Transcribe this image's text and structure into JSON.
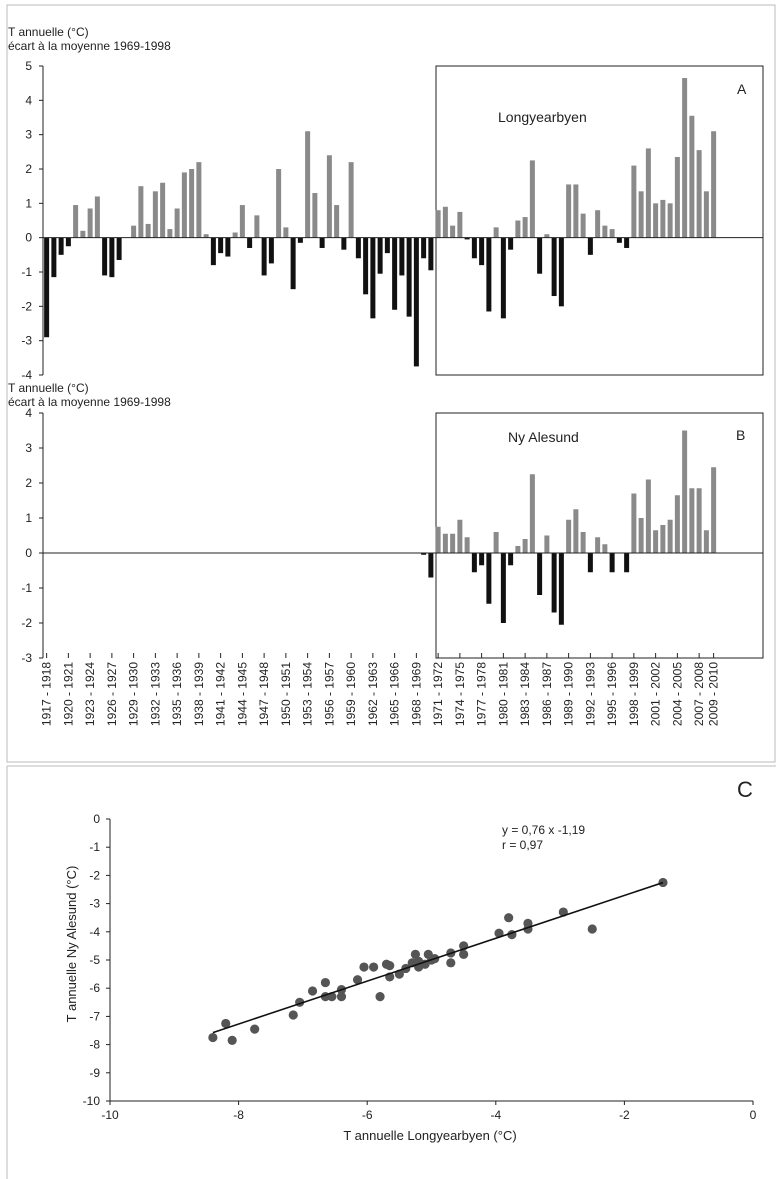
{
  "chart_data": [
    {
      "type": "bar",
      "panel": "A",
      "station": "Longyearbyen",
      "ylabel_line1": "T annuelle (°C)",
      "ylabel_line2": "écart à la moyenne 1969-1998",
      "ylim": [
        -4,
        5
      ],
      "yticks": [
        "5",
        "4",
        "3",
        "2",
        "1",
        "0",
        "-1",
        "-2",
        "-3",
        "-4"
      ],
      "ytick_values": [
        5,
        4,
        3,
        2,
        1,
        0,
        -1,
        -2,
        -3,
        -4
      ],
      "x_start_year": 1917,
      "highlight_from_year": 1969,
      "values": [
        -2.9,
        -1.15,
        -0.5,
        -0.25,
        0.95,
        0.2,
        0.85,
        1.2,
        -1.1,
        -1.15,
        -0.65,
        0.0,
        0.35,
        1.5,
        0.4,
        1.35,
        1.6,
        0.25,
        0.85,
        1.9,
        2.0,
        2.2,
        0.1,
        -0.8,
        -0.45,
        -0.55,
        0.15,
        0.95,
        -0.3,
        0.65,
        -1.1,
        -0.75,
        2.0,
        0.3,
        -1.5,
        -0.15,
        3.1,
        1.3,
        -0.3,
        2.4,
        0.95,
        -0.35,
        2.2,
        -0.6,
        -1.65,
        -2.35,
        -1.05,
        -0.45,
        -2.1,
        -1.1,
        -2.3,
        -3.75,
        -0.6,
        -0.95,
        0.8,
        0.9,
        0.35,
        0.75,
        -0.05,
        -0.6,
        -0.8,
        -2.15,
        0.3,
        -2.35,
        -0.35,
        0.5,
        0.6,
        2.25,
        -1.05,
        0.1,
        -1.7,
        -2.0,
        1.55,
        1.55,
        0.7,
        -0.5,
        0.8,
        0.35,
        0.25,
        -0.15,
        -0.3,
        2.1,
        1.35,
        2.6,
        1.0,
        1.1,
        1.0,
        2.35,
        4.65,
        3.55,
        2.55,
        1.35,
        3.1
      ]
    },
    {
      "type": "bar",
      "panel": "B",
      "station": "Ny Alesund",
      "ylabel_line1": "T annuelle (°C)",
      "ylabel_line2": "écart à la moyenne 1969-1998",
      "ylim": [
        -3,
        4
      ],
      "yticks": [
        "4",
        "3",
        "2",
        "1",
        "0",
        "-1",
        "-2",
        "-3"
      ],
      "ytick_values": [
        4,
        3,
        2,
        1,
        0,
        -1,
        -2,
        -3
      ],
      "x_start_year": 1969,
      "values": [
        -0.05,
        -0.7,
        0.75,
        0.55,
        0.55,
        0.95,
        0.45,
        -0.55,
        -0.35,
        -1.45,
        0.6,
        -2.0,
        -0.35,
        0.2,
        0.4,
        2.25,
        -1.2,
        0.5,
        -1.7,
        -2.05,
        0.95,
        1.25,
        0.6,
        -0.55,
        0.45,
        0.25,
        -0.55,
        0.0,
        -0.55,
        1.7,
        1.0,
        2.1,
        0.65,
        0.8,
        0.95,
        1.65,
        3.5,
        1.85,
        1.85,
        0.65,
        2.45
      ],
      "x_tick_labels": [
        "1917 - 1918",
        "1920 - 1921",
        "1923 - 1924",
        "1926 - 1927",
        "1929 - 1930",
        "1932 - 1933",
        "1935 - 1936",
        "1938 - 1939",
        "1941 - 1942",
        "1944 - 1945",
        "1947 - 1948",
        "1950 - 1951",
        "1953 - 1954",
        "1956 - 1957",
        "1959 - 1960",
        "1962 - 1963",
        "1965 - 1966",
        "1968 - 1969",
        "1971 - 1972",
        "1974 - 1975",
        "1977 - 1978",
        "1980 - 1981",
        "1983 - 1984",
        "1986 - 1987",
        "1989 - 1990",
        "1992 - 1993",
        "1995 - 1996",
        "1998 - 1999",
        "2001 - 2002",
        "2004 - 2005",
        "2007 - 2008",
        "2009 - 2010"
      ]
    },
    {
      "type": "scatter",
      "panel": "C",
      "xlabel": "T annuelle Longyearbyen (°C)",
      "ylabel": "T annuelle  Ny Alesund (°C)",
      "xlim": [
        -10,
        0
      ],
      "ylim": [
        -10,
        0
      ],
      "xticks": [
        -10,
        -8,
        -6,
        -4,
        -2,
        0
      ],
      "xtick_labels": [
        "-10",
        "-8",
        "-6",
        "-4",
        "-2",
        "0"
      ],
      "yticks": [
        0,
        -1,
        -2,
        -3,
        -4,
        -5,
        -6,
        -7,
        -8,
        -9,
        -10
      ],
      "ytick_labels": [
        "0",
        "-1",
        "-2",
        "-3",
        "-4",
        "-5",
        "-6",
        "-7",
        "-8",
        "-9",
        "-10"
      ],
      "regression_text": "y = 0,76 x -1,19",
      "r_text": "r = 0,97",
      "fit_line": {
        "slope": 0.76,
        "intercept": -1.19,
        "x_from": -8.4,
        "x_to": -1.4
      },
      "points": [
        {
          "x": -8.4,
          "y": -7.75
        },
        {
          "x": -8.2,
          "y": -7.25
        },
        {
          "x": -8.1,
          "y": -7.85
        },
        {
          "x": -7.75,
          "y": -7.45
        },
        {
          "x": -7.15,
          "y": -6.95
        },
        {
          "x": -7.05,
          "y": -6.5
        },
        {
          "x": -6.85,
          "y": -6.1
        },
        {
          "x": -6.65,
          "y": -5.8
        },
        {
          "x": -6.65,
          "y": -6.3
        },
        {
          "x": -6.55,
          "y": -6.3
        },
        {
          "x": -6.4,
          "y": -6.05
        },
        {
          "x": -6.4,
          "y": -6.3
        },
        {
          "x": -6.15,
          "y": -5.7
        },
        {
          "x": -6.05,
          "y": -5.25
        },
        {
          "x": -5.9,
          "y": -5.25
        },
        {
          "x": -5.8,
          "y": -6.3
        },
        {
          "x": -5.7,
          "y": -5.15
        },
        {
          "x": -5.65,
          "y": -5.2
        },
        {
          "x": -5.65,
          "y": -5.6
        },
        {
          "x": -5.5,
          "y": -5.5
        },
        {
          "x": -5.4,
          "y": -5.3
        },
        {
          "x": -5.3,
          "y": -5.1
        },
        {
          "x": -5.25,
          "y": -4.8
        },
        {
          "x": -5.2,
          "y": -5.05
        },
        {
          "x": -5.2,
          "y": -5.25
        },
        {
          "x": -5.1,
          "y": -5.15
        },
        {
          "x": -5.05,
          "y": -4.8
        },
        {
          "x": -5.0,
          "y": -5.0
        },
        {
          "x": -4.95,
          "y": -4.95
        },
        {
          "x": -4.7,
          "y": -4.75
        },
        {
          "x": -4.7,
          "y": -5.1
        },
        {
          "x": -4.5,
          "y": -4.5
        },
        {
          "x": -4.5,
          "y": -4.8
        },
        {
          "x": -3.95,
          "y": -4.05
        },
        {
          "x": -3.8,
          "y": -3.5
        },
        {
          "x": -3.75,
          "y": -4.1
        },
        {
          "x": -3.5,
          "y": -3.7
        },
        {
          "x": -3.5,
          "y": -3.9
        },
        {
          "x": -2.95,
          "y": -3.3
        },
        {
          "x": -2.5,
          "y": -3.9
        },
        {
          "x": -1.4,
          "y": -2.25
        }
      ]
    }
  ]
}
